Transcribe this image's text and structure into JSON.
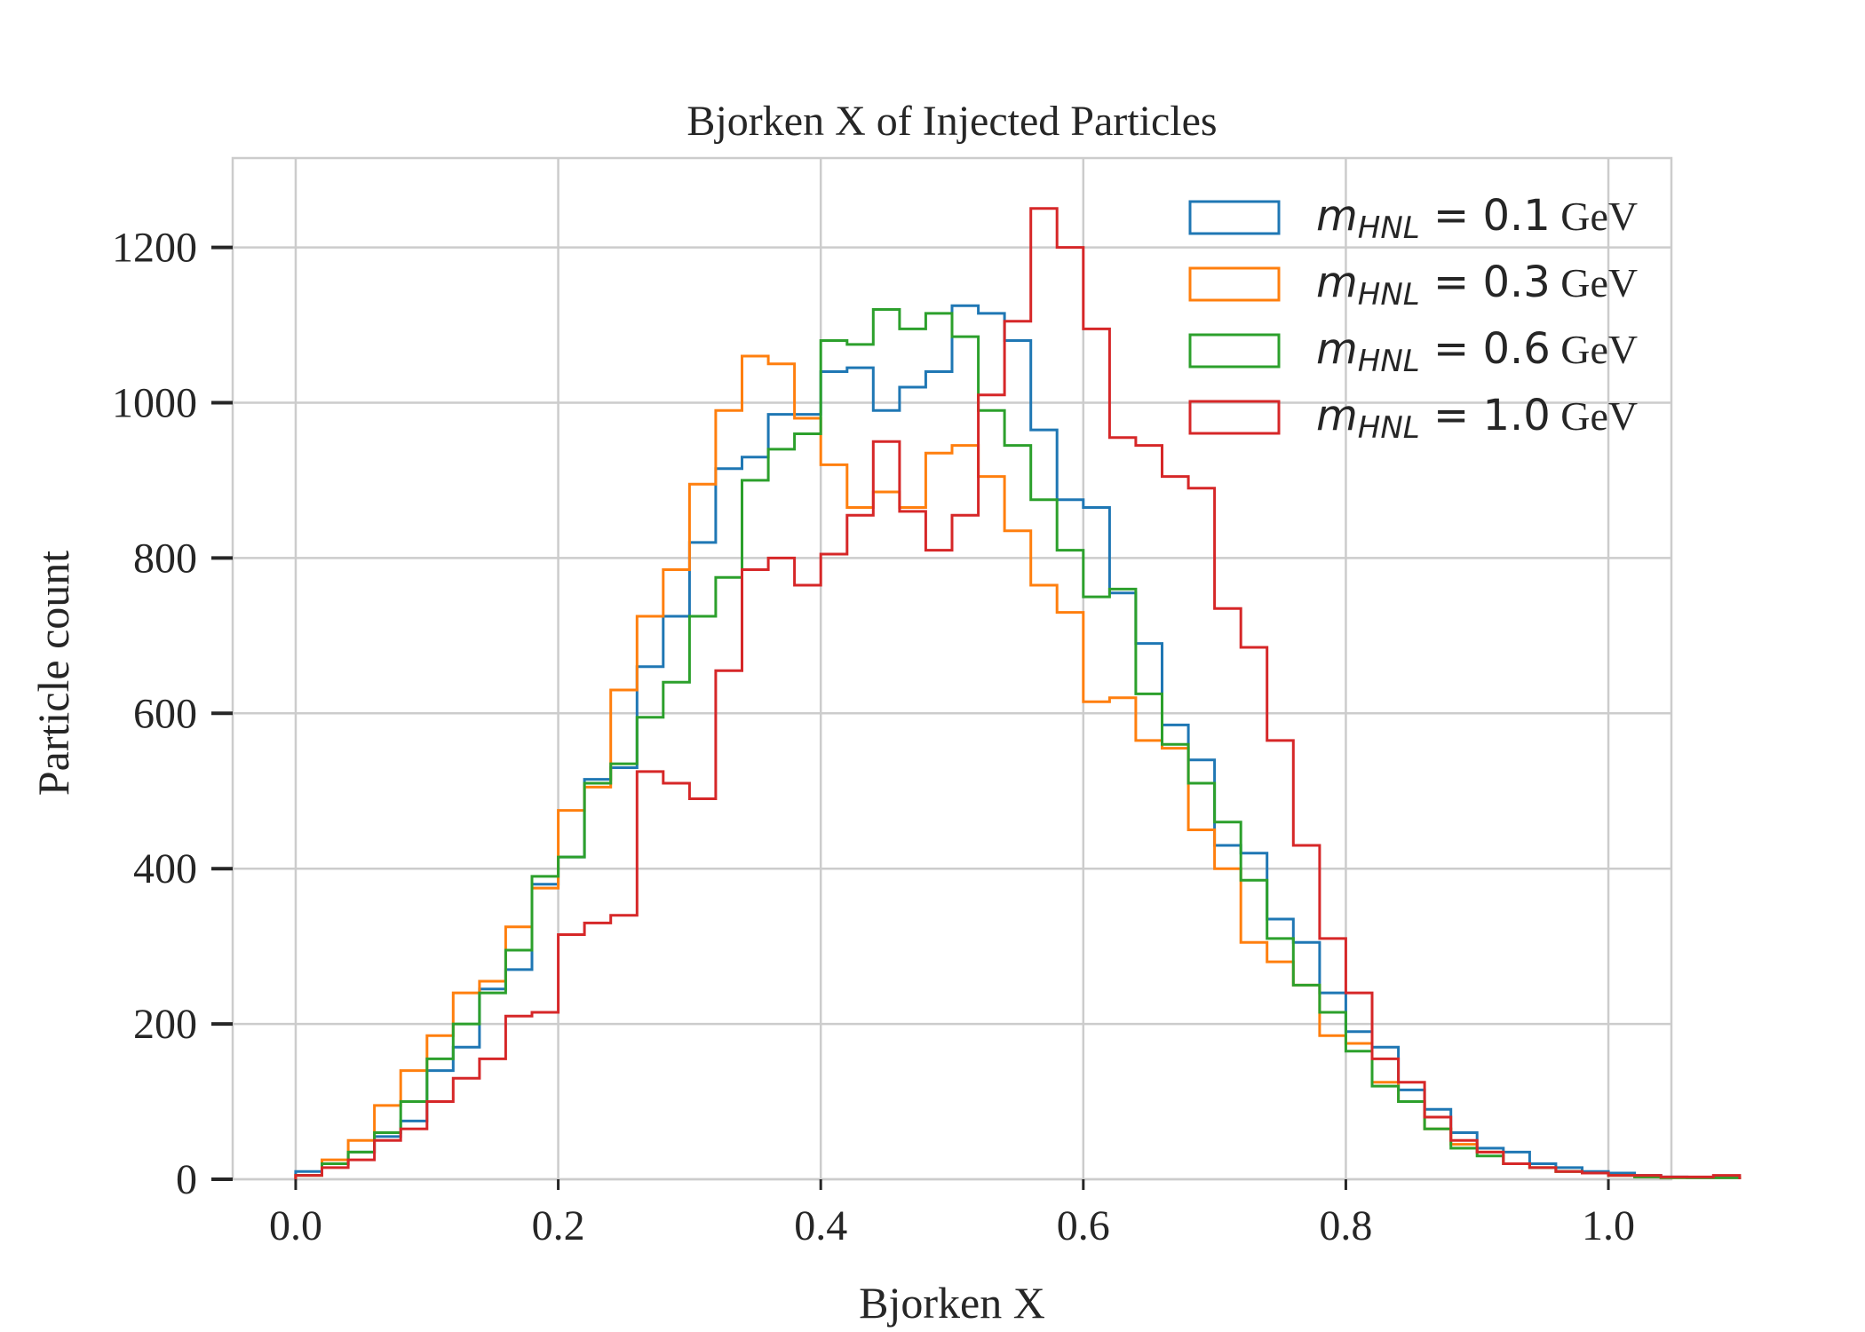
{
  "chart_data": {
    "type": "histogram",
    "title": "Bjorken X of Injected Particles",
    "xlabel": "Bjorken X",
    "ylabel": "Particle count",
    "xlim": [
      -0.048,
      1.048
    ],
    "ylim": [
      0,
      1315
    ],
    "xticks": [
      0.0,
      0.2,
      0.4,
      0.6,
      0.8,
      1.0
    ],
    "xtick_labels": [
      "0.0",
      "0.2",
      "0.4",
      "0.6",
      "0.8",
      "1.0"
    ],
    "yticks": [
      0,
      200,
      400,
      600,
      800,
      1000,
      1200
    ],
    "ytick_labels": [
      "0",
      "200",
      "400",
      "600",
      "800",
      "1000",
      "1200"
    ],
    "grid": true,
    "legend_position": "top-right",
    "bin_edges_start": 0.0,
    "bin_width": 0.02,
    "series": [
      {
        "label_math": "m_{HNL} = 0.1",
        "label_unit": "GeV",
        "color": "#1f77b4",
        "values": [
          10,
          20,
          35,
          55,
          75,
          140,
          170,
          245,
          270,
          380,
          415,
          515,
          530,
          660,
          725,
          820,
          915,
          930,
          985,
          985,
          1040,
          1045,
          990,
          1020,
          1040,
          1125,
          1115,
          1080,
          965,
          875,
          865,
          755,
          690,
          585,
          540,
          430,
          420,
          335,
          305,
          240,
          190,
          170,
          115,
          90,
          60,
          40,
          35,
          20,
          15,
          10,
          8,
          5,
          3,
          2,
          2
        ]
      },
      {
        "label_math": "m_{HNL} = 0.3",
        "label_unit": "GeV",
        "color": "#ff7f0e",
        "values": [
          5,
          25,
          50,
          95,
          140,
          185,
          240,
          255,
          325,
          375,
          475,
          505,
          630,
          725,
          785,
          895,
          990,
          1060,
          1050,
          980,
          920,
          865,
          885,
          865,
          935,
          945,
          905,
          835,
          765,
          730,
          615,
          620,
          565,
          555,
          450,
          400,
          305,
          280,
          250,
          185,
          175,
          125,
          100,
          65,
          45,
          35,
          20,
          15,
          10,
          8,
          5,
          3,
          2,
          2,
          2
        ]
      },
      {
        "label_math": "m_{HNL} = 0.6",
        "label_unit": "GeV",
        "color": "#2ca02c",
        "values": [
          5,
          20,
          35,
          60,
          100,
          155,
          200,
          240,
          295,
          390,
          415,
          510,
          535,
          595,
          640,
          725,
          775,
          900,
          940,
          960,
          1080,
          1075,
          1120,
          1095,
          1115,
          1085,
          990,
          945,
          875,
          810,
          750,
          760,
          625,
          560,
          510,
          460,
          385,
          310,
          250,
          215,
          165,
          120,
          100,
          65,
          40,
          30,
          20,
          15,
          10,
          8,
          5,
          3,
          2,
          2,
          2
        ]
      },
      {
        "label_math": "m_{HNL} = 1.0",
        "label_unit": "GeV",
        "color": "#d62728",
        "values": [
          5,
          15,
          25,
          50,
          65,
          100,
          130,
          155,
          210,
          215,
          315,
          330,
          340,
          525,
          510,
          490,
          655,
          785,
          800,
          765,
          805,
          855,
          950,
          860,
          810,
          855,
          1010,
          1105,
          1250,
          1200,
          1095,
          955,
          945,
          905,
          890,
          735,
          685,
          565,
          430,
          310,
          240,
          155,
          125,
          80,
          50,
          35,
          20,
          15,
          10,
          8,
          5,
          5,
          3,
          3,
          5
        ]
      }
    ]
  }
}
